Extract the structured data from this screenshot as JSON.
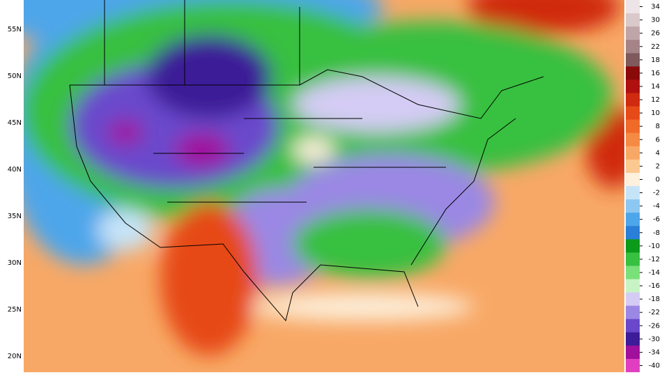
{
  "map": {
    "latitude_labels": [
      "55N",
      "50N",
      "45N",
      "40N",
      "35N",
      "30N",
      "25N",
      "20N"
    ],
    "colorbar": [
      {
        "label": "34",
        "color": "#ece4e6"
      },
      {
        "label": "30",
        "color": "#d9c9cb"
      },
      {
        "label": "26",
        "color": "#bfa5a8"
      },
      {
        "label": "22",
        "color": "#a58487"
      },
      {
        "label": "18",
        "color": "#7e5a5c"
      },
      {
        "label": "16",
        "color": "#8a0a0a"
      },
      {
        "label": "14",
        "color": "#b01010"
      },
      {
        "label": "12",
        "color": "#d02a10"
      },
      {
        "label": "10",
        "color": "#e64a18"
      },
      {
        "label": "8",
        "color": "#f06a28"
      },
      {
        "label": "6",
        "color": "#f48a44"
      },
      {
        "label": "4",
        "color": "#f8a866"
      },
      {
        "label": "2",
        "color": "#fbc890"
      },
      {
        "label": "0",
        "color": "#fdf0dc"
      },
      {
        "label": "-2",
        "color": "#c6e4f8"
      },
      {
        "label": "-4",
        "color": "#8cc8f2"
      },
      {
        "label": "-6",
        "color": "#4ea6ea"
      },
      {
        "label": "-8",
        "color": "#2a7fd8"
      },
      {
        "label": "-10",
        "color": "#0c9a1a"
      },
      {
        "label": "-12",
        "color": "#38c040"
      },
      {
        "label": "-14",
        "color": "#7ae07a"
      },
      {
        "label": "-16",
        "color": "#c8f4c4"
      },
      {
        "label": "-18",
        "color": "#d4ccf4"
      },
      {
        "label": "-22",
        "color": "#9a88e4"
      },
      {
        "label": "-26",
        "color": "#6a48cc"
      },
      {
        "label": "-30",
        "color": "#3c1c98"
      },
      {
        "label": "-34",
        "color": "#a0109c"
      },
      {
        "label": "-40",
        "color": "#e040c0"
      }
    ]
  }
}
